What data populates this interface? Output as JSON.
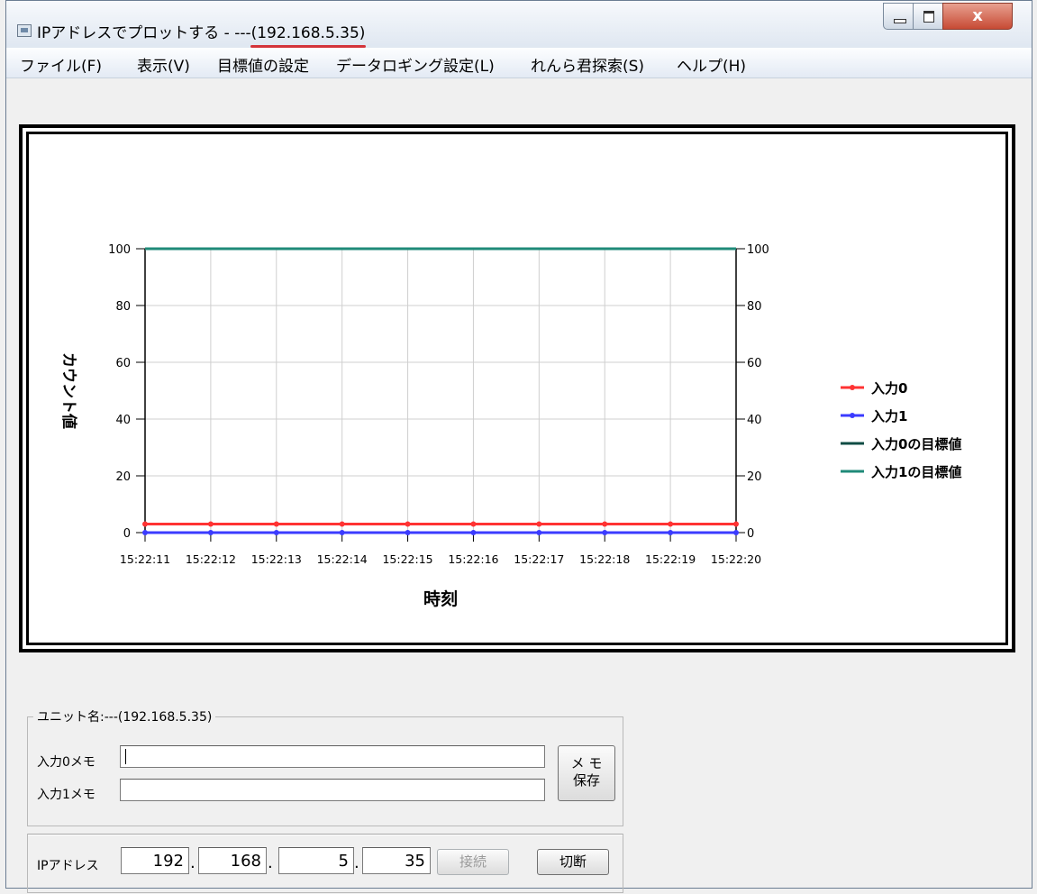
{
  "window": {
    "title_prefix": "IPアドレスでプロットする - ---",
    "title_ip": "(192.168.5.35)",
    "close_glyph": "x"
  },
  "menu": [
    "ファイル(F)",
    "表示(V)",
    "目標値の設定",
    "データロギング設定(L)",
    "れんら君探索(S)",
    "ヘルプ(H)"
  ],
  "chart_data": {
    "type": "line",
    "xlabel": "時刻",
    "ylabel": "カウント値",
    "categories": [
      "15:22:11",
      "15:22:12",
      "15:22:13",
      "15:22:14",
      "15:22:15",
      "15:22:16",
      "15:22:17",
      "15:22:18",
      "15:22:19",
      "15:22:20"
    ],
    "y_ticks": [
      "0",
      "20",
      "40",
      "60",
      "80",
      "100"
    ],
    "ylim": [
      0,
      100
    ],
    "grid": true,
    "legend_position": "right",
    "series": [
      {
        "name": "入力0",
        "values": [
          3,
          3,
          3,
          3,
          3,
          3,
          3,
          3,
          3,
          3
        ],
        "color": "#ff3333",
        "marker": true
      },
      {
        "name": "入力1",
        "values": [
          0,
          0,
          0,
          0,
          0,
          0,
          0,
          0,
          0,
          0
        ],
        "color": "#3b3bff",
        "marker": true
      },
      {
        "name": "入力0の目標値",
        "values": [
          0,
          0,
          0,
          0,
          0,
          0,
          0,
          0,
          0,
          0
        ],
        "color": "#0f4c44",
        "marker": false
      },
      {
        "name": "入力1の目標値",
        "values": [
          100,
          100,
          100,
          100,
          100,
          100,
          100,
          100,
          100,
          100
        ],
        "color": "#1f8a78",
        "marker": false
      }
    ]
  },
  "unit": {
    "group_title": "ユニット名:---(192.168.5.35)",
    "memo0_label": "入力0メモ",
    "memo0_value": "",
    "memo1_label": "入力1メモ",
    "memo1_value": "",
    "save_memo_button": "メ モ\n保存",
    "ip_label": "IPアドレス",
    "ip_octets": [
      "192",
      "168",
      "5",
      "35"
    ],
    "connect_button": "接続",
    "disconnect_button": "切断"
  }
}
